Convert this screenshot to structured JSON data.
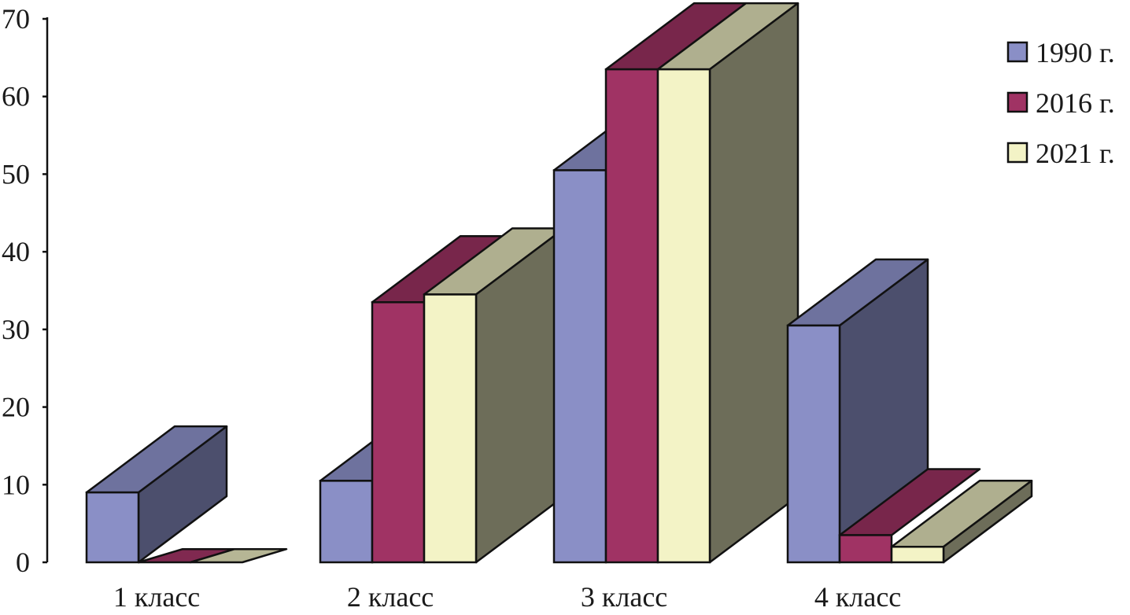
{
  "chart_data": {
    "type": "bar",
    "style": "3d-clustered",
    "categories": [
      "1 класс",
      "2 класс",
      "3 класс",
      "4 класс"
    ],
    "series": [
      {
        "name": "1990 г.",
        "values": [
          9,
          10.5,
          50.5,
          30.5
        ],
        "color": "#8a8fc6"
      },
      {
        "name": "2016 г.",
        "values": [
          0,
          33.5,
          63.5,
          3.5
        ],
        "color": "#a03364"
      },
      {
        "name": "2021 г.",
        "values": [
          0,
          34.5,
          63.5,
          2
        ],
        "color": "#f3f3c6"
      }
    ],
    "title": "",
    "xlabel": "",
    "ylabel": "",
    "ylim": [
      0,
      70
    ],
    "yticks": [
      "0",
      "10",
      "20",
      "30",
      "40",
      "50",
      "60",
      "70"
    ],
    "grid": false,
    "legend_position": "top-right"
  }
}
